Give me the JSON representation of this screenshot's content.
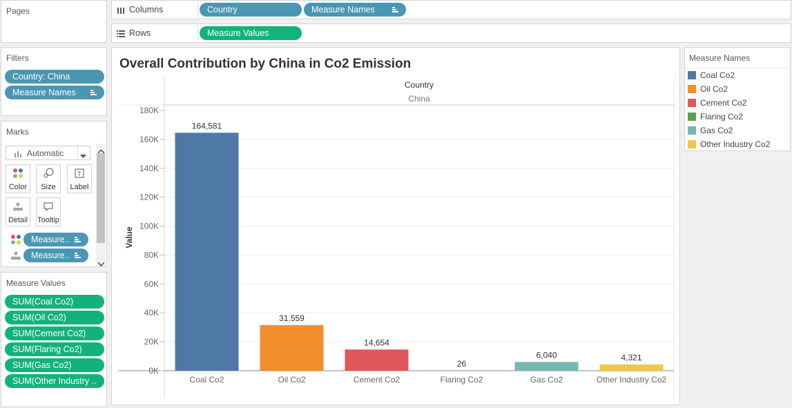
{
  "pages_panel": {
    "title": "Pages"
  },
  "columns_shelf": {
    "label": "Columns",
    "pills": [
      "Country",
      "Measure Names"
    ]
  },
  "rows_shelf": {
    "label": "Rows",
    "pills": [
      "Measure Values"
    ]
  },
  "filters_panel": {
    "title": "Filters",
    "pills": [
      "Country: China",
      "Measure Names"
    ]
  },
  "marks_panel": {
    "title": "Marks",
    "mark_type": "Automatic",
    "buttons": {
      "color": "Color",
      "size": "Size",
      "label": "Label",
      "detail": "Detail",
      "tooltip": "Tooltip"
    },
    "pills": [
      "Measure..",
      "Measure.."
    ]
  },
  "measure_values_panel": {
    "title": "Measure Values",
    "pills": [
      "SUM(Coal Co2)",
      "SUM(Oil Co2)",
      "SUM(Cement Co2)",
      "SUM(Flaring Co2)",
      "SUM(Gas Co2)",
      "SUM(Other Industry .."
    ]
  },
  "legend": {
    "title": "Measure Names",
    "items": [
      {
        "label": "Coal Co2",
        "color": "#4e79a7"
      },
      {
        "label": "Oil Co2",
        "color": "#f28e2b"
      },
      {
        "label": "Cement Co2",
        "color": "#e15759"
      },
      {
        "label": "Flaring Co2",
        "color": "#59a14f"
      },
      {
        "label": "Gas Co2",
        "color": "#76b7b2"
      },
      {
        "label": "Other Industry Co2",
        "color": "#edc948"
      }
    ]
  },
  "chart_data": {
    "type": "bar",
    "title": "Overall Contribution by China in Co2 Emission",
    "column_header_title": "Country",
    "column_header_value": "China",
    "ylabel": "Value",
    "xlabel": "",
    "ylim": [
      0,
      180000
    ],
    "yticks": [
      0,
      20000,
      40000,
      60000,
      80000,
      100000,
      120000,
      140000,
      160000,
      180000
    ],
    "ytick_labels": [
      "0K",
      "20K",
      "40K",
      "60K",
      "80K",
      "100K",
      "120K",
      "140K",
      "160K",
      "180K"
    ],
    "categories": [
      "Coal Co2",
      "Oil Co2",
      "Cement Co2",
      "Flaring Co2",
      "Gas Co2",
      "Other Industry Co2"
    ],
    "values": [
      164581,
      31559,
      14654,
      26,
      6040,
      4321
    ],
    "data_labels": [
      "164,581",
      "31,559",
      "14,654",
      "26",
      "6,040",
      "4,321"
    ],
    "colors": [
      "#4e79a7",
      "#f28e2b",
      "#e15759",
      "#59a14f",
      "#76b7b2",
      "#edc948"
    ],
    "grid": true,
    "legend_position": "right"
  }
}
